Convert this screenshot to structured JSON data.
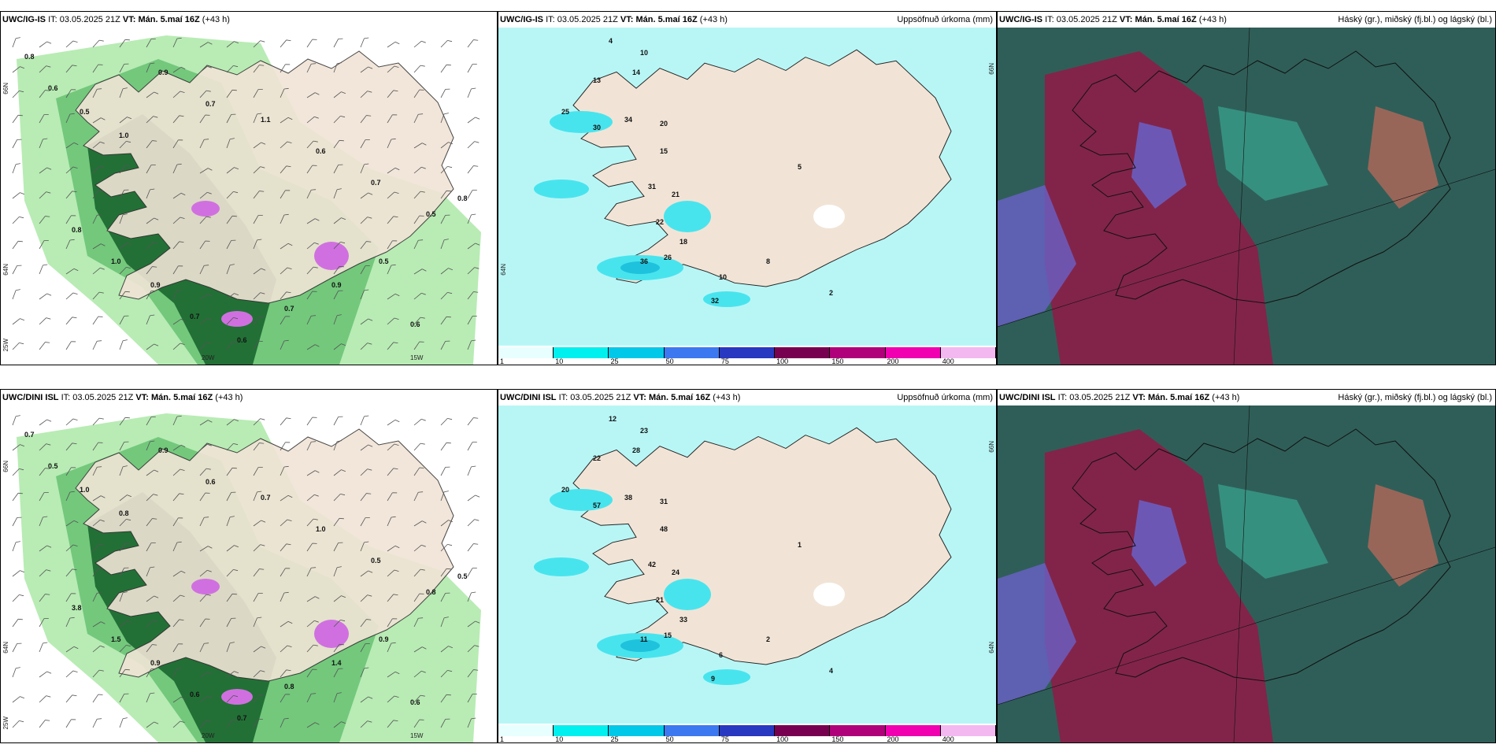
{
  "colors": {
    "land": "#f1e4d6",
    "cyan_light": "#b8f6f6",
    "cyan": "#48e4ee",
    "cyan_dark": "#1ec2dc",
    "green_light": "#b8ecb4",
    "green_mid": "#5cbc6a",
    "green_dark": "#0e5a24",
    "magenta": "#d070e0",
    "cloud_dark": "#2f5e58",
    "cloud_red": "#8c1e48",
    "cloud_blue": "#6a60c8",
    "cloud_teal": "#3cb9a0"
  },
  "rows": [
    {
      "model_label": "UWC/IG-IS",
      "it_label": "IT:",
      "it_value": "03.05.2025 21Z",
      "vt_label": "VT:",
      "vt_value": "Mán. 5.maí 16Z",
      "lead": "(+43 h)",
      "precip_title": "Uppsöfnuð úrkoma (mm)",
      "cloud_title": "Háský (gr.), miðský (fj.bl.) og lágský (bl.)",
      "wind_values": [
        {
          "v": "0.8"
        },
        {
          "v": "0.6"
        },
        {
          "v": "0.5"
        },
        {
          "v": "1.0"
        },
        {
          "v": "0.9"
        },
        {
          "v": "0.7"
        },
        {
          "v": "1.1"
        },
        {
          "v": "0.6"
        },
        {
          "v": "0.7"
        },
        {
          "v": "0.5"
        },
        {
          "v": "0.8"
        },
        {
          "v": "1.0"
        },
        {
          "v": "0.9"
        },
        {
          "v": "0.7"
        },
        {
          "v": "0.6"
        },
        {
          "v": "0.7"
        },
        {
          "v": "0.9"
        },
        {
          "v": "0.5"
        },
        {
          "v": "0.6"
        },
        {
          "v": "0.8"
        }
      ],
      "precip_values": [
        {
          "v": "4"
        },
        {
          "v": "10"
        },
        {
          "v": "13"
        },
        {
          "v": "14"
        },
        {
          "v": "25"
        },
        {
          "v": "30"
        },
        {
          "v": "34"
        },
        {
          "v": "20"
        },
        {
          "v": "15"
        },
        {
          "v": "31"
        },
        {
          "v": "21"
        },
        {
          "v": "22"
        },
        {
          "v": "18"
        },
        {
          "v": "26"
        },
        {
          "v": "36"
        },
        {
          "v": "32"
        },
        {
          "v": "10"
        },
        {
          "v": "8"
        },
        {
          "v": "2"
        },
        {
          "v": "5"
        }
      ],
      "axis_labels": {
        "a": "66N",
        "b": "64N",
        "c": "20W",
        "d": "15W",
        "e": "25W"
      }
    },
    {
      "model_label": "UWC/DINI ISL",
      "it_label": "IT:",
      "it_value": "03.05.2025 21Z",
      "vt_label": "VT:",
      "vt_value": "Mán. 5.maí 16Z",
      "lead": "(+43 h)",
      "precip_title": "Uppsöfnuð úrkoma (mm)",
      "cloud_title": "Háský (gr.), miðský (fj.bl.) og lágský (bl.)",
      "wind_values": [
        {
          "v": "0.7"
        },
        {
          "v": "0.5"
        },
        {
          "v": "1.0"
        },
        {
          "v": "0.8"
        },
        {
          "v": "0.9"
        },
        {
          "v": "0.6"
        },
        {
          "v": "0.7"
        },
        {
          "v": "1.0"
        },
        {
          "v": "0.5"
        },
        {
          "v": "0.8"
        },
        {
          "v": "3.8"
        },
        {
          "v": "1.5"
        },
        {
          "v": "0.9"
        },
        {
          "v": "0.6"
        },
        {
          "v": "0.7"
        },
        {
          "v": "0.8"
        },
        {
          "v": "1.4"
        },
        {
          "v": "0.9"
        },
        {
          "v": "0.6"
        },
        {
          "v": "0.5"
        }
      ],
      "precip_values": [
        {
          "v": "12"
        },
        {
          "v": "23"
        },
        {
          "v": "22"
        },
        {
          "v": "28"
        },
        {
          "v": "20"
        },
        {
          "v": "57"
        },
        {
          "v": "38"
        },
        {
          "v": "31"
        },
        {
          "v": "48"
        },
        {
          "v": "42"
        },
        {
          "v": "24"
        },
        {
          "v": "21"
        },
        {
          "v": "33"
        },
        {
          "v": "15"
        },
        {
          "v": "11"
        },
        {
          "v": "9"
        },
        {
          "v": "6"
        },
        {
          "v": "2"
        },
        {
          "v": "4"
        },
        {
          "v": "1"
        }
      ],
      "axis_labels": {
        "a": "66N",
        "b": "64N",
        "c": "20W",
        "d": "15W",
        "e": "25W"
      }
    }
  ],
  "colorbar": {
    "labels": [
      "1",
      "10",
      "25",
      "50",
      "75",
      "100",
      "150",
      "200",
      "400"
    ],
    "colors": [
      "#e8ffff",
      "#00f0f0",
      "#00c8e8",
      "#3c78f0",
      "#2838c0",
      "#780050",
      "#b0007a",
      "#f000b0",
      "#f4b8f0"
    ]
  }
}
